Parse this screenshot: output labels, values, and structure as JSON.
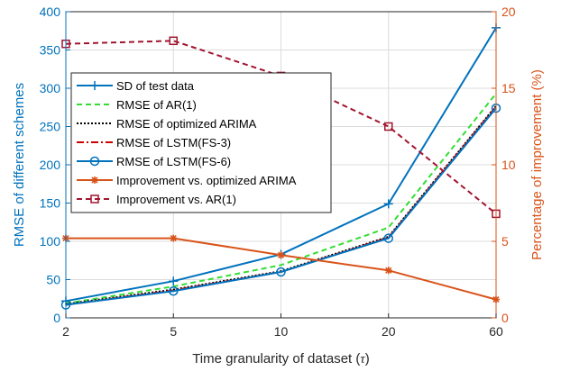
{
  "chart_data": {
    "type": "line",
    "x": [
      "2",
      "5",
      "10",
      "20",
      "60"
    ],
    "xlabel_text": "Time granularity of dataset (",
    "xlabel_symbol": "τ",
    "xlabel_close": ")",
    "ylabel": "RMSE of different schemes",
    "y2label": "Percentage of improvement (%)",
    "ylim": [
      0,
      400
    ],
    "y2lim": [
      0,
      20
    ],
    "yticks": [
      "0",
      "50",
      "100",
      "150",
      "200",
      "250",
      "300",
      "350",
      "400"
    ],
    "y2ticks": [
      "0",
      "5",
      "10",
      "15",
      "20"
    ],
    "grid": true,
    "legend_position": "center-left",
    "colors": {
      "left_axis": "#0072BD",
      "right_axis": "#D95319",
      "sd": "#0072BD",
      "ar": "#33DD33",
      "arima": "#000000",
      "fs3": "#CC0000",
      "fs6": "#0072BD",
      "imp_arima": "#D95319",
      "imp_ar": "#A2142F"
    },
    "series": [
      {
        "name": "SD of test data",
        "axis": "left",
        "values": [
          22,
          48,
          83,
          149,
          379
        ]
      },
      {
        "name": "RMSE of AR(1)",
        "axis": "left",
        "values": [
          19,
          41,
          69,
          118,
          293
        ]
      },
      {
        "name": "RMSE of optimized ARIMA",
        "axis": "left",
        "values": [
          18,
          37,
          61,
          106,
          277
        ]
      },
      {
        "name": "RMSE of LSTM(FS-3)",
        "axis": "left",
        "values": [
          17,
          36,
          60,
          105,
          276
        ]
      },
      {
        "name": "RMSE of LSTM(FS-6)",
        "axis": "left",
        "values": [
          17,
          35,
          60,
          104,
          274
        ]
      },
      {
        "name": "Improvement vs. optimized ARIMA",
        "axis": "right",
        "values": [
          5.2,
          5.2,
          4.1,
          3.1,
          1.2
        ]
      },
      {
        "name": "Improvement vs. AR(1)",
        "axis": "right",
        "values": [
          17.9,
          18.1,
          15.8,
          12.5,
          6.8
        ]
      }
    ]
  }
}
